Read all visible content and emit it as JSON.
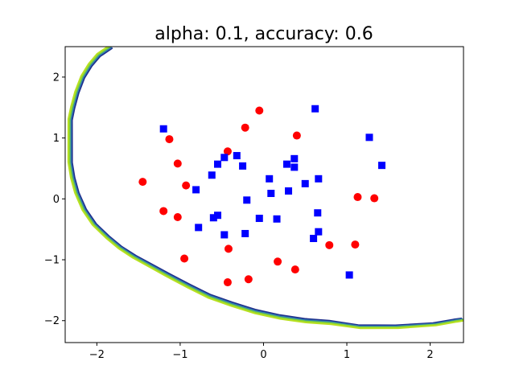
{
  "chart_data": {
    "type": "scatter",
    "title": "alpha: 0.1, accuracy: 0.6",
    "xlabel": "",
    "ylabel": "",
    "xlim": [
      -2.38,
      2.4
    ],
    "ylim": [
      -2.36,
      2.5
    ],
    "xticks": [
      -2,
      -1,
      0,
      1,
      2
    ],
    "yticks": [
      -2,
      -1,
      0,
      1,
      2
    ],
    "grid": false,
    "legend": "none",
    "series": [
      {
        "marker": "circle",
        "color": "#ff0000",
        "points": [
          [
            -0.05,
            1.45
          ],
          [
            0.4,
            1.04
          ],
          [
            -0.22,
            1.17
          ],
          [
            -1.13,
            0.98
          ],
          [
            -1.03,
            0.58
          ],
          [
            -0.43,
            0.78
          ],
          [
            -1.45,
            0.28
          ],
          [
            -0.93,
            0.22
          ],
          [
            -1.2,
            -0.2
          ],
          [
            -1.03,
            -0.3
          ],
          [
            1.13,
            0.03
          ],
          [
            1.33,
            0.01
          ],
          [
            -0.95,
            -0.98
          ],
          [
            -0.42,
            -0.82
          ],
          [
            0.79,
            -0.76
          ],
          [
            1.1,
            -0.75
          ],
          [
            0.17,
            -1.03
          ],
          [
            0.38,
            -1.16
          ],
          [
            -0.18,
            -1.32
          ],
          [
            -0.43,
            -1.37
          ]
        ]
      },
      {
        "marker": "square",
        "color": "#0000ff",
        "points": [
          [
            -1.2,
            1.15
          ],
          [
            0.62,
            1.48
          ],
          [
            1.27,
            1.01
          ],
          [
            1.42,
            0.55
          ],
          [
            -0.32,
            0.71
          ],
          [
            -0.47,
            0.68
          ],
          [
            -0.25,
            0.54
          ],
          [
            -0.55,
            0.57
          ],
          [
            -0.62,
            0.39
          ],
          [
            0.37,
            0.66
          ],
          [
            0.37,
            0.52
          ],
          [
            0.28,
            0.57
          ],
          [
            0.07,
            0.33
          ],
          [
            0.66,
            0.33
          ],
          [
            0.5,
            0.25
          ],
          [
            0.3,
            0.13
          ],
          [
            0.09,
            0.09
          ],
          [
            -0.81,
            0.15
          ],
          [
            -0.2,
            -0.02
          ],
          [
            -0.05,
            -0.32
          ],
          [
            0.16,
            -0.33
          ],
          [
            0.65,
            -0.23
          ],
          [
            -0.55,
            -0.27
          ],
          [
            -0.6,
            -0.31
          ],
          [
            -0.78,
            -0.47
          ],
          [
            -0.47,
            -0.59
          ],
          [
            -0.22,
            -0.57
          ],
          [
            0.66,
            -0.54
          ],
          [
            0.6,
            -0.65
          ],
          [
            1.03,
            -1.25
          ]
        ]
      }
    ],
    "decision_boundary": {
      "colors": [
        "#1f2f8c",
        "#2f7fb0",
        "#7fd03a",
        "#b8e020"
      ],
      "points": [
        [
          -1.83,
          2.5
        ],
        [
          -1.98,
          2.36
        ],
        [
          -2.08,
          2.2
        ],
        [
          -2.17,
          2.0
        ],
        [
          -2.24,
          1.75
        ],
        [
          -2.29,
          1.5
        ],
        [
          -2.32,
          1.3
        ],
        [
          -2.32,
          0.6
        ],
        [
          -2.29,
          0.35
        ],
        [
          -2.24,
          0.1
        ],
        [
          -2.15,
          -0.18
        ],
        [
          -2.03,
          -0.42
        ],
        [
          -1.87,
          -0.63
        ],
        [
          -1.72,
          -0.8
        ],
        [
          -1.55,
          -0.95
        ],
        [
          -1.35,
          -1.1
        ],
        [
          -1.15,
          -1.25
        ],
        [
          -0.9,
          -1.43
        ],
        [
          -0.65,
          -1.6
        ],
        [
          -0.38,
          -1.73
        ],
        [
          -0.1,
          -1.85
        ],
        [
          0.2,
          -1.94
        ],
        [
          0.5,
          -2.0
        ],
        [
          0.8,
          -2.03
        ],
        [
          1.15,
          -2.1
        ],
        [
          1.6,
          -2.1
        ],
        [
          2.05,
          -2.06
        ],
        [
          2.3,
          -2.0
        ],
        [
          2.4,
          -1.98
        ]
      ]
    }
  }
}
